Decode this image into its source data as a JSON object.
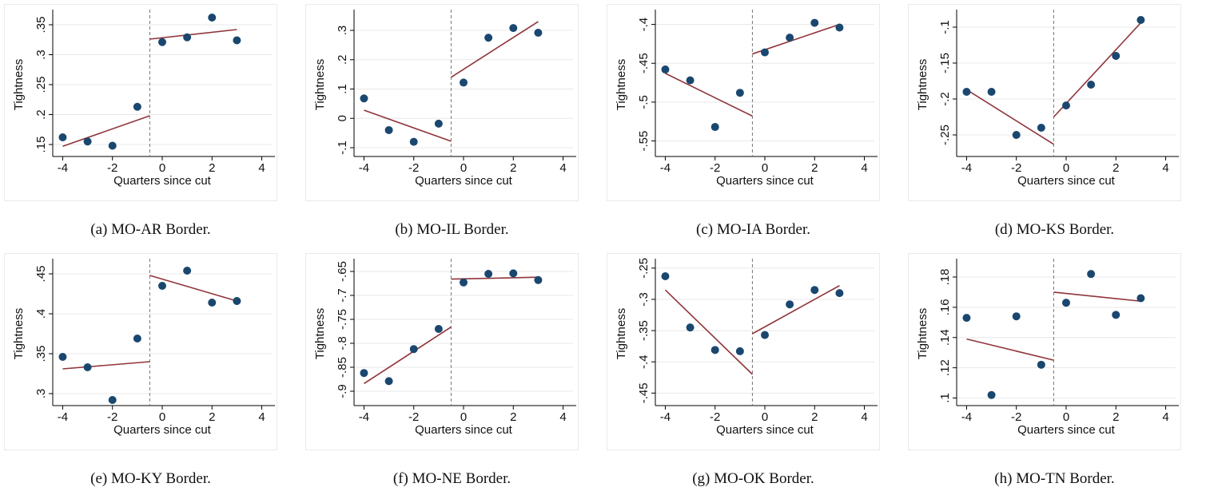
{
  "chart_data": [
    {
      "type": "scatter",
      "caption": "(a) MO-AR Border.",
      "xlabel": "Quarters since cut",
      "ylabel": "Tightness",
      "x": [
        -4,
        -3,
        -2,
        -1,
        0,
        1,
        2,
        3
      ],
      "values": [
        0.162,
        0.155,
        0.148,
        0.213,
        0.321,
        0.329,
        0.362,
        0.324
      ],
      "color": "#1a476f",
      "fit": [
        {
          "x": [
            -4,
            -0.5
          ],
          "values": [
            0.147,
            0.198
          ]
        },
        {
          "x": [
            -0.5,
            3
          ],
          "values": [
            0.326,
            0.342
          ]
        }
      ],
      "fit_color": "#90353b",
      "cutoff": -0.5,
      "xlim": [
        -4.4,
        4.4
      ],
      "xticks": [
        -4,
        -2,
        0,
        2,
        4
      ],
      "ylim": [
        0.13,
        0.37
      ],
      "yticks": [
        {
          "value": 0.15,
          "label": ".15"
        },
        {
          "value": 0.2,
          "label": ".2"
        },
        {
          "value": 0.25,
          "label": ".25"
        },
        {
          "value": 0.3,
          "label": ".3"
        },
        {
          "value": 0.35,
          "label": ".35"
        }
      ],
      "grid": true
    },
    {
      "type": "scatter",
      "caption": "(b) MO-IL Border.",
      "xlabel": "Quarters since cut",
      "ylabel": "Tightness",
      "x": [
        -4,
        -3,
        -2,
        -1,
        0,
        1,
        2,
        3
      ],
      "values": [
        0.068,
        -0.04,
        -0.08,
        -0.018,
        0.122,
        0.275,
        0.308,
        0.292
      ],
      "color": "#1a476f",
      "fit": [
        {
          "x": [
            -4,
            -0.5
          ],
          "values": [
            0.028,
            -0.078
          ]
        },
        {
          "x": [
            -0.5,
            3
          ],
          "values": [
            0.14,
            0.33
          ]
        }
      ],
      "fit_color": "#90353b",
      "cutoff": -0.5,
      "xlim": [
        -4.4,
        4.4
      ],
      "xticks": [
        -4,
        -2,
        0,
        2,
        4
      ],
      "ylim": [
        -0.13,
        0.36
      ],
      "yticks": [
        {
          "value": -0.1,
          "label": "-.1"
        },
        0,
        {
          "value": 0.1,
          "label": ".1"
        },
        {
          "value": 0.2,
          "label": ".2"
        },
        {
          "value": 0.3,
          "label": ".3"
        }
      ],
      "grid": true
    },
    {
      "type": "scatter",
      "caption": "(c) MO-IA Border.",
      "xlabel": "Quarters since cut",
      "ylabel": "Tightness",
      "x": [
        -4,
        -3,
        -2,
        -1,
        0,
        1,
        2,
        3
      ],
      "values": [
        -0.458,
        -0.472,
        -0.532,
        -0.488,
        -0.436,
        -0.417,
        -0.398,
        -0.404
      ],
      "color": "#1a476f",
      "fit": [
        {
          "x": [
            -4,
            -0.5
          ],
          "values": [
            -0.463,
            -0.518
          ]
        },
        {
          "x": [
            -0.5,
            3
          ],
          "values": [
            -0.438,
            -0.4
          ]
        }
      ],
      "fit_color": "#90353b",
      "cutoff": -0.5,
      "xlim": [
        -4.4,
        4.4
      ],
      "xticks": [
        -4,
        -2,
        0,
        2,
        4
      ],
      "ylim": [
        -0.57,
        -0.385
      ],
      "yticks": [
        {
          "value": -0.55,
          "label": "-.55"
        },
        {
          "value": -0.5,
          "label": "-.5"
        },
        {
          "value": -0.45,
          "label": "-.45"
        },
        {
          "value": -0.4,
          "label": "-.4"
        }
      ],
      "grid": true
    },
    {
      "type": "scatter",
      "caption": "(d) MO-KS Border.",
      "xlabel": "Quarters since cut",
      "ylabel": "Tightness",
      "x": [
        -4,
        -3,
        -2,
        -1,
        0,
        1,
        2,
        3
      ],
      "values": [
        -0.19,
        -0.19,
        -0.25,
        -0.24,
        -0.209,
        -0.18,
        -0.14,
        -0.09
      ],
      "color": "#1a476f",
      "fit": [
        {
          "x": [
            -4,
            -0.5
          ],
          "values": [
            -0.187,
            -0.263
          ]
        },
        {
          "x": [
            -0.5,
            3
          ],
          "values": [
            -0.225,
            -0.094
          ]
        }
      ],
      "fit_color": "#90353b",
      "cutoff": -0.5,
      "xlim": [
        -4.4,
        4.4
      ],
      "xticks": [
        -4,
        -2,
        0,
        2,
        4
      ],
      "ylim": [
        -0.28,
        -0.08
      ],
      "yticks": [
        {
          "value": -0.25,
          "label": "-.25"
        },
        {
          "value": -0.2,
          "label": "-.2"
        },
        {
          "value": -0.15,
          "label": "-.15"
        },
        {
          "value": -0.1,
          "label": "-.1"
        }
      ],
      "grid": true
    },
    {
      "type": "scatter",
      "caption": "(e) MO-KY Border.",
      "xlabel": "Quarters since cut",
      "ylabel": "Tightness",
      "x": [
        -4,
        -3,
        -2,
        -1,
        0,
        1,
        2,
        3
      ],
      "values": [
        0.346,
        0.333,
        0.292,
        0.369,
        0.435,
        0.454,
        0.414,
        0.416
      ],
      "color": "#1a476f",
      "fit": [
        {
          "x": [
            -4,
            -0.5
          ],
          "values": [
            0.331,
            0.34
          ]
        },
        {
          "x": [
            -0.5,
            3
          ],
          "values": [
            0.448,
            0.416
          ]
        }
      ],
      "fit_color": "#90353b",
      "cutoff": -0.5,
      "xlim": [
        -4.4,
        4.4
      ],
      "xticks": [
        -4,
        -2,
        0,
        2,
        4
      ],
      "ylim": [
        0.285,
        0.465
      ],
      "yticks": [
        {
          "value": 0.3,
          "label": ".3"
        },
        {
          "value": 0.35,
          "label": ".35"
        },
        {
          "value": 0.4,
          "label": ".4"
        },
        {
          "value": 0.45,
          "label": ".45"
        }
      ],
      "grid": true
    },
    {
      "type": "scatter",
      "caption": "(f) MO-NE Border.",
      "xlabel": "Quarters since cut",
      "ylabel": "Tightness",
      "x": [
        -4,
        -3,
        -2,
        -1,
        0,
        1,
        2,
        3
      ],
      "values": [
        -0.862,
        -0.879,
        -0.812,
        -0.77,
        -0.673,
        -0.655,
        -0.654,
        -0.668
      ],
      "color": "#1a476f",
      "fit": [
        {
          "x": [
            -4,
            -0.5
          ],
          "values": [
            -0.884,
            -0.766
          ]
        },
        {
          "x": [
            -0.5,
            3
          ],
          "values": [
            -0.666,
            -0.662
          ]
        }
      ],
      "fit_color": "#90353b",
      "cutoff": -0.5,
      "xlim": [
        -4.4,
        4.4
      ],
      "xticks": [
        -4,
        -2,
        0,
        2,
        4
      ],
      "ylim": [
        -0.93,
        -0.63
      ],
      "yticks": [
        {
          "value": -0.9,
          "label": "-.9"
        },
        {
          "value": -0.85,
          "label": "-.85"
        },
        {
          "value": -0.8,
          "label": "-.8"
        },
        {
          "value": -0.75,
          "label": "-.75"
        },
        {
          "value": -0.7,
          "label": "-.7"
        },
        {
          "value": -0.65,
          "label": "-.65"
        }
      ],
      "grid": true
    },
    {
      "type": "scatter",
      "caption": "(g) MO-OK Border.",
      "xlabel": "Quarters since cut",
      "ylabel": "Tightness",
      "x": [
        -4,
        -3,
        -2,
        -1,
        0,
        1,
        2,
        3
      ],
      "values": [
        -0.263,
        -0.345,
        -0.381,
        -0.383,
        -0.357,
        -0.308,
        -0.285,
        -0.29
      ],
      "color": "#1a476f",
      "fit": [
        {
          "x": [
            -4,
            -0.5
          ],
          "values": [
            -0.285,
            -0.42
          ]
        },
        {
          "x": [
            -0.5,
            3
          ],
          "values": [
            -0.355,
            -0.278
          ]
        }
      ],
      "fit_color": "#90353b",
      "cutoff": -0.5,
      "xlim": [
        -4.4,
        4.4
      ],
      "xticks": [
        -4,
        -2,
        0,
        2,
        4
      ],
      "ylim": [
        -0.47,
        -0.24
      ],
      "yticks": [
        {
          "value": -0.45,
          "label": "-.45"
        },
        {
          "value": -0.4,
          "label": "-.4"
        },
        {
          "value": -0.35,
          "label": "-.35"
        },
        {
          "value": -0.3,
          "label": "-.3"
        },
        {
          "value": -0.25,
          "label": "-.25"
        }
      ],
      "grid": true
    },
    {
      "type": "scatter",
      "caption": "(h) MO-TN Border.",
      "xlabel": "Quarters since cut",
      "ylabel": "Tightness",
      "x": [
        -4,
        -3,
        -2,
        -1,
        0,
        1,
        2,
        3
      ],
      "values": [
        0.153,
        0.102,
        0.154,
        0.122,
        0.163,
        0.182,
        0.155,
        0.166
      ],
      "color": "#1a476f",
      "fit": [
        {
          "x": [
            -4,
            -0.5
          ],
          "values": [
            0.139,
            0.125
          ]
        },
        {
          "x": [
            -0.5,
            3
          ],
          "values": [
            0.17,
            0.164
          ]
        }
      ],
      "fit_color": "#90353b",
      "cutoff": -0.5,
      "xlim": [
        -4.4,
        4.4
      ],
      "xticks": [
        -4,
        -2,
        0,
        2,
        4
      ],
      "ylim": [
        0.095,
        0.19
      ],
      "yticks": [
        {
          "value": 0.1,
          "label": ".1"
        },
        {
          "value": 0.12,
          "label": ".12"
        },
        {
          "value": 0.14,
          "label": ".14"
        },
        {
          "value": 0.16,
          "label": ".16"
        },
        {
          "value": 0.18,
          "label": ".18"
        }
      ],
      "grid": true
    }
  ]
}
